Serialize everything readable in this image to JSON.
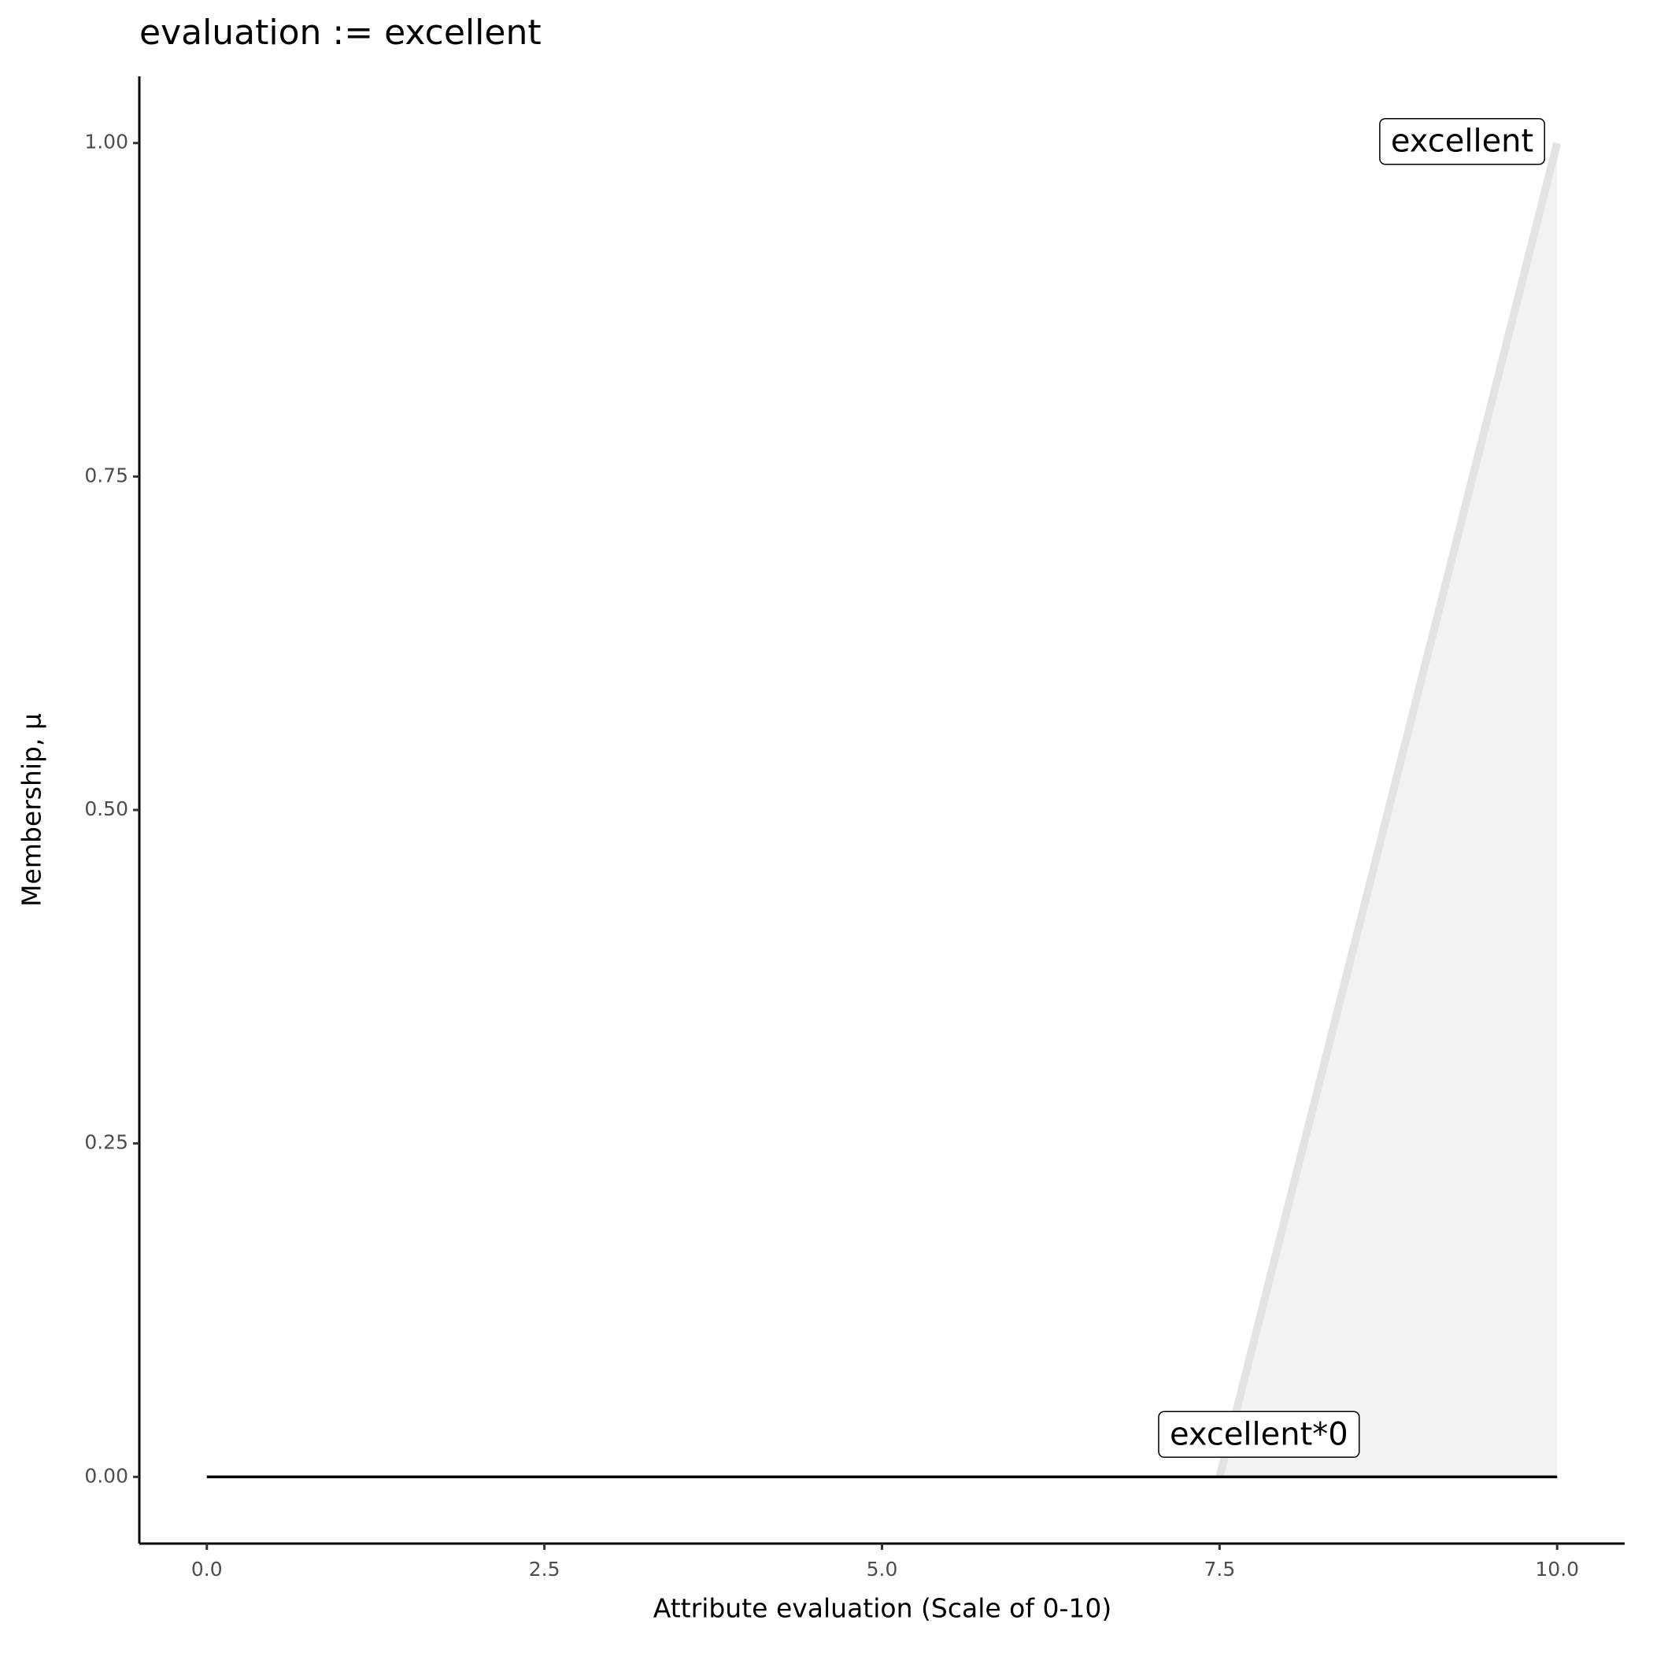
{
  "chart_data": {
    "type": "line",
    "title": "evaluation := excellent",
    "xlabel": "Attribute evaluation (Scale of 0-10)",
    "ylabel": "Membership, μ",
    "xlim": [
      -0.5,
      10.5
    ],
    "ylim": [
      -0.05,
      1.05
    ],
    "xticks": [
      {
        "value": 0,
        "label": "0.0"
      },
      {
        "value": 2.5,
        "label": "2.5"
      },
      {
        "value": 5,
        "label": "5.0"
      },
      {
        "value": 7.5,
        "label": "7.5"
      },
      {
        "value": 10,
        "label": "10.0"
      }
    ],
    "yticks": [
      {
        "value": 0,
        "label": "0.00"
      },
      {
        "value": 0.25,
        "label": "0.25"
      },
      {
        "value": 0.5,
        "label": "0.50"
      },
      {
        "value": 0.75,
        "label": "0.75"
      },
      {
        "value": 1,
        "label": "1.00"
      }
    ],
    "grid": false,
    "series": [
      {
        "name": "excellent",
        "color": "#e3e3e3",
        "fill": "#f2f2f2",
        "x": [
          7.5,
          10
        ],
        "values": [
          0,
          1
        ]
      },
      {
        "name": "excellent*0",
        "color": "#000000",
        "x": [
          0,
          10
        ],
        "values": [
          0,
          0
        ]
      }
    ]
  }
}
